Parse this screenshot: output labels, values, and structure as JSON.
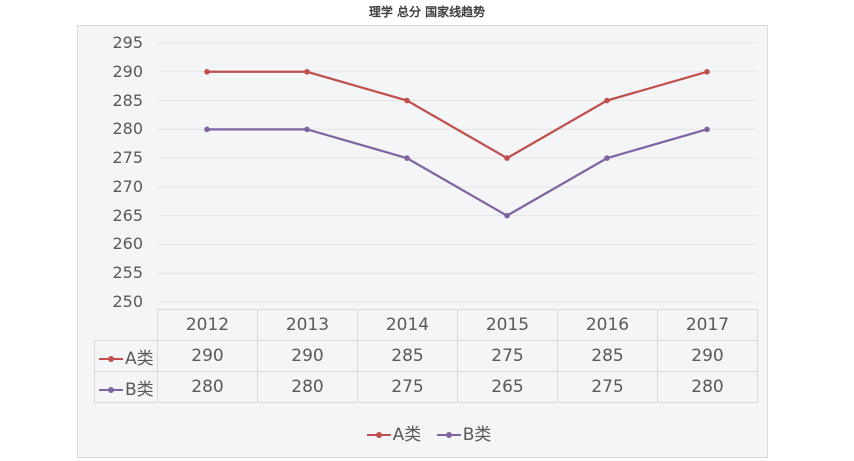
{
  "title": "理学 总分 国家线趋势",
  "colors": {
    "series_a": "#c0504d",
    "series_b": "#8064a2",
    "grid": "#e3e3e3",
    "background": "#f4f5f7"
  },
  "y_ticks": [
    "295",
    "290",
    "285",
    "280",
    "275",
    "270",
    "265",
    "260",
    "255",
    "250"
  ],
  "table": {
    "header": [
      "2012",
      "2013",
      "2014",
      "2015",
      "2016",
      "2017"
    ],
    "rows": [
      {
        "label": "A类",
        "values": [
          "290",
          "290",
          "285",
          "275",
          "285",
          "290"
        ]
      },
      {
        "label": "B类",
        "values": [
          "280",
          "280",
          "275",
          "265",
          "275",
          "280"
        ]
      }
    ]
  },
  "legend": [
    {
      "label": "A类"
    },
    {
      "label": "B类"
    }
  ],
  "chart_data": {
    "type": "line",
    "title": "理学 总分 国家线趋势",
    "categories": [
      "2012",
      "2013",
      "2014",
      "2015",
      "2016",
      "2017"
    ],
    "series": [
      {
        "name": "A类",
        "values": [
          290,
          290,
          285,
          275,
          285,
          290
        ],
        "color": "#c0504d"
      },
      {
        "name": "B类",
        "values": [
          280,
          280,
          275,
          265,
          275,
          280
        ],
        "color": "#8064a2"
      }
    ],
    "xlabel": "",
    "ylabel": "",
    "ylim": [
      250,
      295
    ],
    "yticks": [
      250,
      255,
      260,
      265,
      270,
      275,
      280,
      285,
      290,
      295
    ],
    "grid": true,
    "legend_position": "bottom",
    "data_table": true
  }
}
